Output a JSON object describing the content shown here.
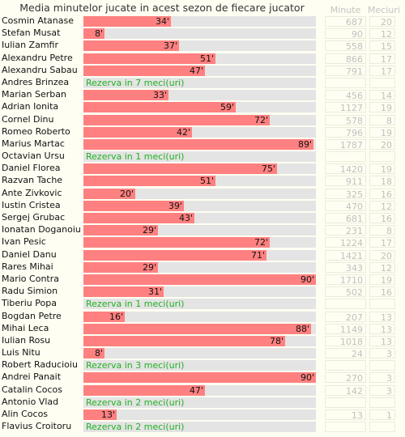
{
  "chart_data": {
    "type": "bar",
    "title": "Media minutelor jucate in acest sezon de fiecare jucator",
    "xlim": [
      0,
      90
    ],
    "value_suffix": "'",
    "columns": {
      "minutes": "Minute",
      "matches": "Meciuri"
    },
    "colors": {
      "bar": "#ff8080",
      "track": "#e4e4e4",
      "reserve_text": "#22b022"
    },
    "rows": [
      {
        "name": "Cosmin Atanase",
        "avg": 34,
        "label": "34'",
        "minutes": "687",
        "matches": "20"
      },
      {
        "name": "Stefan Musat",
        "avg": 8,
        "label": "8'",
        "minutes": "90",
        "matches": "12"
      },
      {
        "name": "Iulian Zamfir",
        "avg": 37,
        "label": "37'",
        "minutes": "558",
        "matches": "15"
      },
      {
        "name": "Alexandru Petre",
        "avg": 51,
        "label": "51'",
        "minutes": "866",
        "matches": "17"
      },
      {
        "name": "Alexandru Sabau",
        "avg": 47,
        "label": "47'",
        "minutes": "791",
        "matches": "17"
      },
      {
        "name": "Andres Brinzea",
        "reserve": "Rezerva in 7 meci(uri)"
      },
      {
        "name": "Marian Serban",
        "avg": 33,
        "label": "33'",
        "minutes": "456",
        "matches": "14"
      },
      {
        "name": "Adrian Ionita",
        "avg": 59,
        "label": "59'",
        "minutes": "1127",
        "matches": "19"
      },
      {
        "name": "Cornel Dinu",
        "avg": 72,
        "label": "72'",
        "minutes": "578",
        "matches": "8"
      },
      {
        "name": "Romeo Roberto",
        "avg": 42,
        "label": "42'",
        "minutes": "796",
        "matches": "19"
      },
      {
        "name": "Marius Martac",
        "avg": 89,
        "label": "89'",
        "minutes": "1787",
        "matches": "20"
      },
      {
        "name": "Octavian Ursu",
        "reserve": "Rezerva in 1 meci(uri)"
      },
      {
        "name": "Daniel Florea",
        "avg": 75,
        "label": "75'",
        "minutes": "1420",
        "matches": "19"
      },
      {
        "name": "Razvan Tache",
        "avg": 51,
        "label": "51'",
        "minutes": "911",
        "matches": "18"
      },
      {
        "name": "Ante Zivkovic",
        "avg": 20,
        "label": "20'",
        "minutes": "325",
        "matches": "16"
      },
      {
        "name": "Iustin Cristea",
        "avg": 39,
        "label": "39'",
        "minutes": "470",
        "matches": "12"
      },
      {
        "name": "Sergej Grubac",
        "avg": 43,
        "label": "43'",
        "minutes": "681",
        "matches": "16"
      },
      {
        "name": "Ionatan Doganoiu",
        "avg": 29,
        "label": "29'",
        "minutes": "231",
        "matches": "8"
      },
      {
        "name": "Ivan Pesic",
        "avg": 72,
        "label": "72'",
        "minutes": "1224",
        "matches": "17"
      },
      {
        "name": "Daniel Danu",
        "avg": 71,
        "label": "71'",
        "minutes": "1421",
        "matches": "20"
      },
      {
        "name": "Rares Mihai",
        "avg": 29,
        "label": "29'",
        "minutes": "343",
        "matches": "12"
      },
      {
        "name": "Mario Contra",
        "avg": 90,
        "label": "90'",
        "minutes": "1710",
        "matches": "19"
      },
      {
        "name": "Radu Simion",
        "avg": 31,
        "label": "31'",
        "minutes": "502",
        "matches": "16"
      },
      {
        "name": "Tiberiu Popa",
        "reserve": "Rezerva in 1 meci(uri)"
      },
      {
        "name": "Bogdan Petre",
        "avg": 16,
        "label": "16'",
        "minutes": "207",
        "matches": "13"
      },
      {
        "name": "Mihai Leca",
        "avg": 88,
        "label": "88'",
        "minutes": "1149",
        "matches": "13"
      },
      {
        "name": "Iulian Rosu",
        "avg": 78,
        "label": "78'",
        "minutes": "1018",
        "matches": "13"
      },
      {
        "name": "Luis Nitu",
        "avg": 8,
        "label": "8'",
        "minutes": "24",
        "matches": "3"
      },
      {
        "name": "Robert Raducioiu",
        "reserve": "Rezerva in 3 meci(uri)"
      },
      {
        "name": "Andrei Panait",
        "avg": 90,
        "label": "90'",
        "minutes": "270",
        "matches": "3"
      },
      {
        "name": "Catalin Cocos",
        "avg": 47,
        "label": "47'",
        "minutes": "142",
        "matches": "3"
      },
      {
        "name": "Antonio Vlad",
        "reserve": "Rezerva in 2 meci(uri)"
      },
      {
        "name": "Alin Cocos",
        "avg": 13,
        "label": "13'",
        "minutes": "13",
        "matches": "1"
      },
      {
        "name": "Flavius Croitoru",
        "reserve": "Rezerva in 2 meci(uri)"
      }
    ]
  }
}
